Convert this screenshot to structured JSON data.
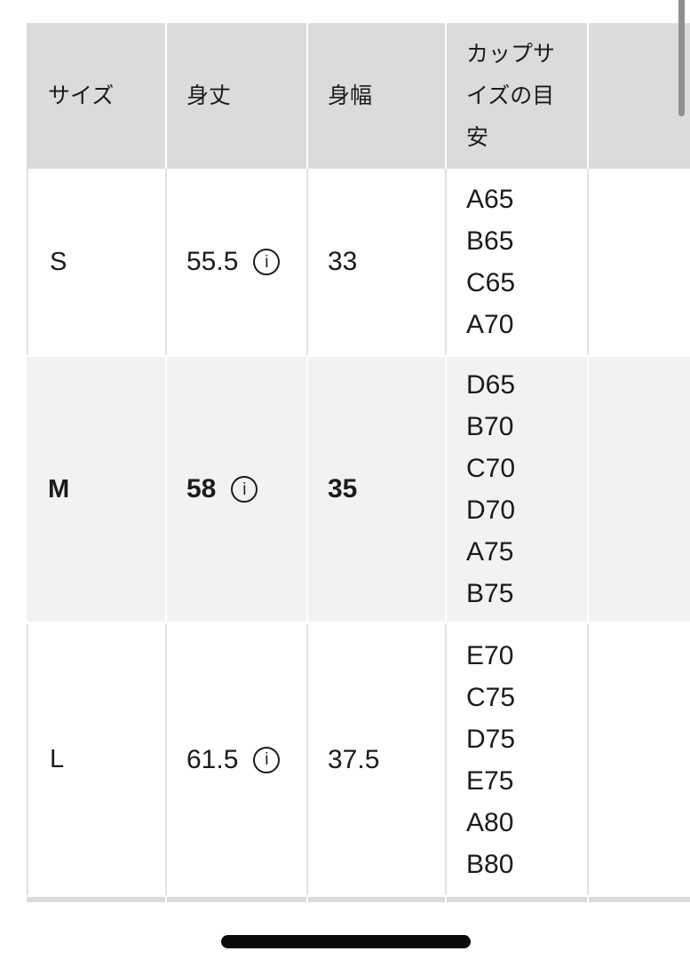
{
  "table": {
    "headers": {
      "size": "サイズ",
      "length": "身丈",
      "width": "身幅",
      "cup": "カップサイズの目安",
      "extra": ""
    },
    "rows": [
      {
        "size": "S",
        "length": "55.5",
        "width": "33",
        "cup_sizes": [
          "A65",
          "B65",
          "C65",
          "A70"
        ]
      },
      {
        "size": "M",
        "length": "58",
        "width": "35",
        "cup_sizes": [
          "D65",
          "B70",
          "C70",
          "D70",
          "A75",
          "B75"
        ],
        "emphasized": true
      },
      {
        "size": "L",
        "length": "61.5",
        "width": "37.5",
        "cup_sizes": [
          "E70",
          "C75",
          "D75",
          "E75",
          "A80",
          "B80"
        ]
      }
    ]
  },
  "icons": {
    "info": "i"
  },
  "colors": {
    "header_bg": "#dbdbdb",
    "row_highlight_bg": "#f2f2f2",
    "row_bg": "#ffffff",
    "divider": "#e2e2e2",
    "text": "#1b1b1b",
    "scrollbar": "#8f8f8f",
    "home_indicator": "#0a0a0a"
  }
}
